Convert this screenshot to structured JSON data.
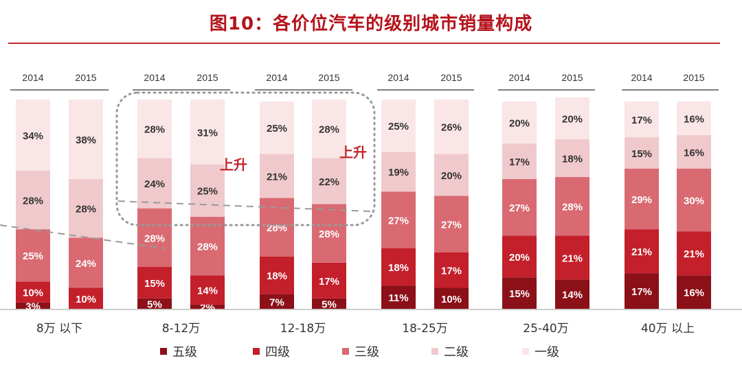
{
  "title": "图10：各价位汽车的级别城市销量构成",
  "annotation_label": "上升",
  "chart_data": {
    "type": "stacked_bar",
    "unit": "%",
    "groups": [
      "8万 以下",
      "8-12万",
      "12-18万",
      "18-25万",
      "25-40万",
      "40万 以上"
    ],
    "years": [
      "2014",
      "2015"
    ],
    "series_order": [
      "五级",
      "四级",
      "三级",
      "二级",
      "一级"
    ],
    "colors": {
      "五级": "#8b1018",
      "四级": "#c3202b",
      "三级": "#d96a72",
      "二级": "#f0c9cc",
      "一级": "#fae6e7"
    },
    "values": [
      {
        "group": "8万 以下",
        "year": "2014",
        "五级": 3,
        "四级": 10,
        "三级": 25,
        "二级": 28,
        "一级": 34
      },
      {
        "group": "8万 以下",
        "year": "2015",
        "五级": 0,
        "四级": 10,
        "三级": 24,
        "二级": 28,
        "一级": 38
      },
      {
        "group": "8-12万",
        "year": "2014",
        "五级": 5,
        "四级": 15,
        "三级": 28,
        "二级": 24,
        "一级": 28
      },
      {
        "group": "8-12万",
        "year": "2015",
        "五级": 2,
        "四级": 14,
        "三级": 28,
        "二级": 25,
        "一级": 31
      },
      {
        "group": "12-18万",
        "year": "2014",
        "五级": 7,
        "四级": 18,
        "三级": 28,
        "二级": 21,
        "一级": 25
      },
      {
        "group": "12-18万",
        "year": "2015",
        "五级": 5,
        "四级": 17,
        "三级": 28,
        "二级": 22,
        "一级": 28
      },
      {
        "group": "18-25万",
        "year": "2014",
        "五级": 11,
        "四级": 18,
        "三级": 27,
        "二级": 19,
        "一级": 25
      },
      {
        "group": "18-25万",
        "year": "2015",
        "五级": 10,
        "四级": 17,
        "三级": 27,
        "二级": 20,
        "一级": 26
      },
      {
        "group": "25-40万",
        "year": "2014",
        "五级": 15,
        "四级": 20,
        "三级": 27,
        "二级": 17,
        "一级": 20
      },
      {
        "group": "25-40万",
        "year": "2015",
        "五级": 14,
        "四级": 21,
        "三级": 28,
        "二级": 18,
        "一级": 20
      },
      {
        "group": "40万 以上",
        "year": "2014",
        "五级": 17,
        "四级": 21,
        "三级": 29,
        "二级": 15,
        "一级": 17
      },
      {
        "group": "40万 以上",
        "year": "2015",
        "五级": 16,
        "四级": 21,
        "三级": 30,
        "二级": 16,
        "一级": 16
      }
    ],
    "legend": [
      "五级",
      "四级",
      "三级",
      "二级",
      "一级"
    ],
    "legend_position": "bottom",
    "ylim": [
      0,
      100
    ]
  }
}
